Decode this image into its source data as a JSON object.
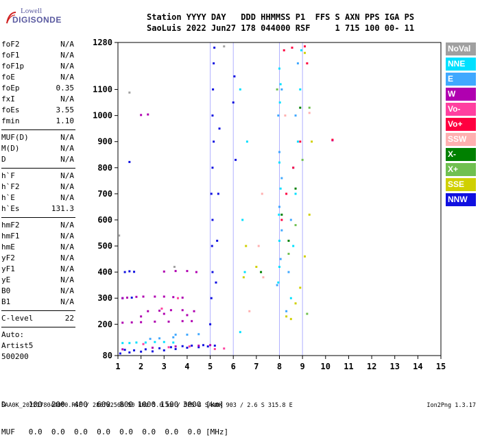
{
  "logo": {
    "line1": "Lowell",
    "line2": "DIGISONDE"
  },
  "header": {
    "line1": "Station YYYY DAY   DDD HHMMSS P1  FFS S AXN PPS IGA PS",
    "line2": "SaoLuis 2022 Jun27 178 044000 RSF     1 715 100 00- 11"
  },
  "params": {
    "group1": [
      {
        "name": "foF2",
        "value": "N/A"
      },
      {
        "name": "foF1",
        "value": "N/A"
      },
      {
        "name": "foF1p",
        "value": "N/A"
      },
      {
        "name": "foE",
        "value": "N/A"
      },
      {
        "name": "foEp",
        "value": "0.35"
      },
      {
        "name": "fxI",
        "value": "N/A"
      },
      {
        "name": "foEs",
        "value": "3.55"
      },
      {
        "name": "fmin",
        "value": "1.10"
      }
    ],
    "group2": [
      {
        "name": "MUF(D)",
        "value": "N/A"
      },
      {
        "name": "M(D)",
        "value": "N/A"
      },
      {
        "name": "D",
        "value": "N/A"
      }
    ],
    "group3": [
      {
        "name": "h`F",
        "value": "N/A"
      },
      {
        "name": "h`F2",
        "value": "N/A"
      },
      {
        "name": "h`E",
        "value": "N/A"
      },
      {
        "name": "h`Es",
        "value": "131.3"
      }
    ],
    "group4": [
      {
        "name": "hmF2",
        "value": "N/A"
      },
      {
        "name": "hmF1",
        "value": "N/A"
      },
      {
        "name": "hmE",
        "value": "N/A"
      },
      {
        "name": "yF2",
        "value": "N/A"
      },
      {
        "name": "yF1",
        "value": "N/A"
      },
      {
        "name": "yE",
        "value": "N/A"
      },
      {
        "name": "B0",
        "value": "N/A"
      },
      {
        "name": "B1",
        "value": "N/A"
      }
    ],
    "clevel": {
      "name": "C-level",
      "value": "22"
    },
    "auto": [
      "Auto:",
      "Artist5",
      "500200"
    ]
  },
  "legend": [
    {
      "label": "NoVal",
      "color": "#a0a0a0"
    },
    {
      "label": "NNE",
      "color": "#00e0ff"
    },
    {
      "label": "E",
      "color": "#40a8ff"
    },
    {
      "label": "W",
      "color": "#b000b0"
    },
    {
      "label": "Vo-",
      "color": "#ff40a0"
    },
    {
      "label": "Vo+",
      "color": "#ff0040"
    },
    {
      "label": "SSW",
      "color": "#ffb0b0"
    },
    {
      "label": "X-",
      "color": "#008000"
    },
    {
      "label": "X+",
      "color": "#70c050"
    },
    {
      "label": "SSE",
      "color": "#d0d000"
    },
    {
      "label": "NNW",
      "color": "#1010e0"
    }
  ],
  "dmuf": {
    "d_label": "D",
    "d_values": [
      "100",
      "200",
      "400",
      "600",
      "800",
      "1000",
      "1500",
      "3000"
    ],
    "d_unit": "[km]",
    "muf_label": "MUF",
    "muf_values": [
      "0.0",
      "0.0",
      "0.0",
      "0.0",
      "0.0",
      "0.0",
      "0.0",
      "0.0"
    ],
    "muf_unit": "[MHz]"
  },
  "footer": {
    "left": "SAA0K_2022178044000.RSF / 280fx256h 50 kHz 5.0 km / DPS-4 SAA0K 903 / 2.6 S 315.8 E",
    "right": "Ion2Png 1.3.17"
  },
  "chart_data": {
    "type": "scatter",
    "title": "",
    "xlabel": "",
    "ylabel": "",
    "x_ticks": [
      1,
      2,
      3,
      4,
      5,
      6,
      7,
      8,
      9,
      10,
      11,
      12,
      13,
      14,
      15
    ],
    "y_ticks": [
      80,
      200,
      300,
      400,
      500,
      600,
      700,
      800,
      900,
      1000,
      1100,
      1280
    ],
    "xlim": [
      1,
      15
    ],
    "ylim": [
      80,
      1280
    ],
    "grid_x": [
      5,
      6,
      8,
      9
    ],
    "series": [
      {
        "name": "NNW",
        "points": [
          [
            1.1,
            88
          ],
          [
            1.5,
            92
          ],
          [
            2.0,
            95
          ],
          [
            2.5,
            96
          ],
          [
            3.0,
            100
          ],
          [
            3.5,
            105
          ],
          [
            4.0,
            110
          ],
          [
            4.5,
            112
          ],
          [
            4.9,
            115
          ],
          [
            5.2,
            118
          ],
          [
            1.3,
            102
          ],
          [
            1.7,
            100
          ],
          [
            2.2,
            104
          ],
          [
            2.8,
            108
          ],
          [
            3.3,
            112
          ],
          [
            3.8,
            116
          ],
          [
            4.2,
            118
          ],
          [
            4.7,
            120
          ],
          [
            5.0,
            200
          ],
          [
            5.05,
            300
          ],
          [
            5.1,
            400
          ],
          [
            5.08,
            500
          ],
          [
            5.1,
            600
          ],
          [
            5.05,
            700
          ],
          [
            5.1,
            800
          ],
          [
            5.15,
            900
          ],
          [
            5.1,
            1000
          ],
          [
            5.12,
            1100
          ],
          [
            5.15,
            1200
          ],
          [
            5.18,
            1260
          ],
          [
            5.25,
            360
          ],
          [
            5.3,
            520
          ],
          [
            5.35,
            700
          ],
          [
            5.4,
            950
          ],
          [
            6.1,
            830
          ],
          [
            6.0,
            1050
          ],
          [
            6.05,
            1150
          ],
          [
            1.3,
            400
          ],
          [
            1.5,
            403
          ],
          [
            1.7,
            401
          ],
          [
            1.5,
            822
          ],
          [
            1.2,
            300
          ],
          [
            1.6,
            302
          ]
        ]
      },
      {
        "name": "W",
        "points": [
          [
            1.2,
            300
          ],
          [
            1.4,
            302
          ],
          [
            1.8,
            305
          ],
          [
            2.1,
            306
          ],
          [
            2.6,
            306
          ],
          [
            3.0,
            306
          ],
          [
            3.4,
            304
          ],
          [
            3.8,
            302
          ],
          [
            1.2,
            206
          ],
          [
            1.6,
            207
          ],
          [
            2.0,
            208
          ],
          [
            2.6,
            210
          ],
          [
            3.2,
            210
          ],
          [
            3.8,
            212
          ],
          [
            4.2,
            212
          ],
          [
            2.3,
            250
          ],
          [
            2.8,
            252
          ],
          [
            3.3,
            254
          ],
          [
            3.8,
            254
          ],
          [
            4.3,
            250
          ],
          [
            2.0,
            230
          ],
          [
            3.0,
            240
          ],
          [
            4.0,
            235
          ],
          [
            3.0,
            402
          ],
          [
            3.5,
            404
          ],
          [
            4.0,
            404
          ],
          [
            4.4,
            400
          ],
          [
            1.2,
            104
          ],
          [
            2.5,
            110
          ],
          [
            3.5,
            115
          ],
          [
            4.5,
            118
          ],
          [
            5.0,
            120
          ],
          [
            2.0,
            1002
          ],
          [
            2.3,
            1004
          ],
          [
            10.3,
            905
          ]
        ]
      },
      {
        "name": "NNE",
        "points": [
          [
            1.2,
            128
          ],
          [
            1.5,
            128
          ],
          [
            1.8,
            130
          ],
          [
            2.2,
            130
          ],
          [
            2.6,
            132
          ],
          [
            3.0,
            132
          ],
          [
            3.4,
            130
          ],
          [
            7.95,
            360
          ],
          [
            8.0,
            420
          ],
          [
            8.0,
            520
          ],
          [
            7.98,
            620
          ],
          [
            8.05,
            720
          ],
          [
            8.0,
            820
          ],
          [
            8.02,
            1050
          ],
          [
            8.05,
            1120
          ],
          [
            8.0,
            1180
          ],
          [
            8.5,
            300
          ],
          [
            8.6,
            500
          ],
          [
            8.7,
            700
          ],
          [
            8.8,
            900
          ],
          [
            8.9,
            1100
          ],
          [
            8.95,
            1250
          ],
          [
            6.3,
            170
          ],
          [
            6.5,
            400
          ],
          [
            6.4,
            600
          ],
          [
            6.6,
            900
          ],
          [
            6.3,
            1100
          ]
        ]
      },
      {
        "name": "E",
        "points": [
          [
            7.9,
            350
          ],
          [
            8.05,
            450
          ],
          [
            8.1,
            560
          ],
          [
            8.0,
            650
          ],
          [
            8.1,
            760
          ],
          [
            8.0,
            860
          ],
          [
            7.95,
            1000
          ],
          [
            8.1,
            1100
          ],
          [
            8.3,
            250
          ],
          [
            8.4,
            400
          ],
          [
            8.5,
            600
          ],
          [
            8.6,
            800
          ],
          [
            8.7,
            1000
          ],
          [
            8.8,
            1200
          ],
          [
            3.5,
            160
          ],
          [
            4.0,
            160
          ],
          [
            4.5,
            162
          ],
          [
            2.4,
            144
          ],
          [
            2.8,
            146
          ],
          [
            3.4,
            150
          ]
        ]
      },
      {
        "name": "Vo-",
        "points": [
          [
            5.2,
            105
          ],
          [
            5.6,
            107
          ],
          [
            3.2,
            112
          ],
          [
            4.1,
            115
          ],
          [
            2.1,
            124
          ],
          [
            2.9,
            260
          ],
          [
            3.6,
            300
          ]
        ]
      },
      {
        "name": "Vo+",
        "points": [
          [
            8.1,
            600
          ],
          [
            8.3,
            700
          ],
          [
            8.6,
            800
          ],
          [
            8.9,
            900
          ],
          [
            9.2,
            1200
          ],
          [
            8.2,
            1250
          ],
          [
            8.55,
            1260
          ],
          [
            9.1,
            1265
          ],
          [
            10.3,
            907
          ]
        ]
      },
      {
        "name": "X-",
        "points": [
          [
            8.1,
            620
          ],
          [
            8.4,
            520
          ],
          [
            8.7,
            720
          ],
          [
            8.9,
            1030
          ],
          [
            7.2,
            400
          ]
        ]
      },
      {
        "name": "X+",
        "points": [
          [
            8.4,
            470
          ],
          [
            8.7,
            580
          ],
          [
            9.0,
            830
          ],
          [
            9.3,
            1030
          ],
          [
            9.2,
            240
          ],
          [
            7.9,
            1100
          ]
        ]
      },
      {
        "name": "SSE",
        "points": [
          [
            6.45,
            380
          ],
          [
            6.55,
            500
          ],
          [
            7.0,
            420
          ],
          [
            8.3,
            230
          ],
          [
            8.5,
            220
          ],
          [
            8.7,
            280
          ],
          [
            8.9,
            340
          ],
          [
            9.1,
            460
          ],
          [
            9.3,
            620
          ],
          [
            9.4,
            900
          ],
          [
            9.1,
            1240
          ]
        ]
      },
      {
        "name": "SSW",
        "points": [
          [
            7.1,
            500
          ],
          [
            7.25,
            700
          ],
          [
            7.3,
            380
          ],
          [
            8.25,
            1000
          ],
          [
            9.3,
            1010
          ],
          [
            6.7,
            250
          ]
        ]
      },
      {
        "name": "NoVal",
        "points": [
          [
            1.5,
            1088
          ],
          [
            1.05,
            540
          ],
          [
            3.45,
            420
          ],
          [
            5.6,
            1265
          ]
        ]
      }
    ]
  }
}
